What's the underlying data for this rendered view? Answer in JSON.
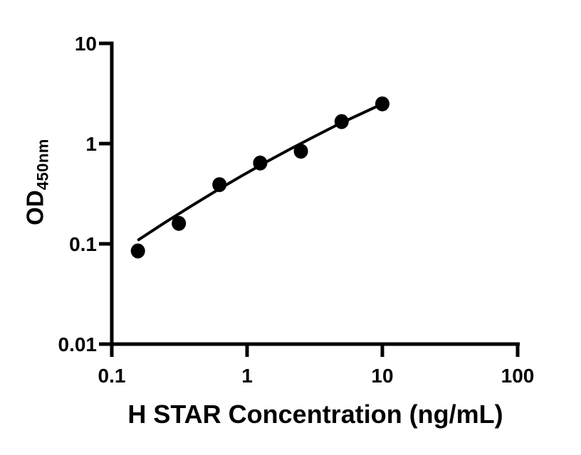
{
  "chart_data": {
    "type": "scatter",
    "title": "",
    "xlabel": "H STAR Concentration (ng/mL)",
    "ylabel_main": "OD",
    "ylabel_sub": "450nm",
    "x_scale": "log",
    "y_scale": "log",
    "xlim": [
      0.1,
      100
    ],
    "ylim": [
      0.01,
      10
    ],
    "x_ticks": [
      0.1,
      1,
      10,
      100
    ],
    "x_tick_labels": [
      "0.1",
      "1",
      "10",
      "100"
    ],
    "y_ticks": [
      10,
      1,
      0.1,
      0.01
    ],
    "y_tick_labels": [
      "10",
      "1",
      "0.1",
      "0.01"
    ],
    "grid": "off",
    "legend": "none",
    "marker_color": "#000000",
    "line_color": "#000000",
    "series": [
      {
        "points": [
          {
            "x": 0.156,
            "y": 0.085
          },
          {
            "x": 0.313,
            "y": 0.16
          },
          {
            "x": 0.625,
            "y": 0.39
          },
          {
            "x": 1.25,
            "y": 0.64
          },
          {
            "x": 2.5,
            "y": 0.84
          },
          {
            "x": 5,
            "y": 1.66
          },
          {
            "x": 10,
            "y": 2.49
          }
        ]
      }
    ],
    "fit_curve": [
      [
        0.158,
        0.11
      ],
      [
        0.247,
        0.163
      ],
      [
        0.384,
        0.237
      ],
      [
        0.591,
        0.338
      ],
      [
        0.904,
        0.473
      ],
      [
        1.374,
        0.652
      ],
      [
        2.08,
        0.88
      ],
      [
        3.12,
        1.17
      ],
      [
        4.64,
        1.54
      ],
      [
        6.88,
        1.97
      ],
      [
        10.0,
        2.49
      ]
    ]
  }
}
